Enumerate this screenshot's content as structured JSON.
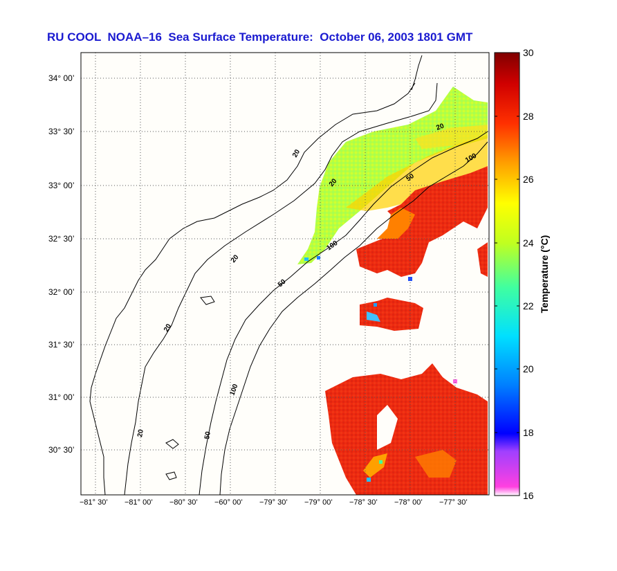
{
  "title": "RU COOL  NOAA–16  Sea Surface Temperature:  October 06, 2003 1801 GMT",
  "lat_labels": [
    "34° 00’",
    "33° 30’",
    "33° 00’",
    "32° 30’",
    "32° 00’",
    "31° 30’",
    "31° 00’",
    "30° 30’"
  ],
  "lon_labels": [
    "−81° 30’",
    "−81° 00’",
    "−80° 30’",
    "−60° 00’",
    "−79° 30’",
    "−79° 00’",
    "−78° 30’",
    "−78° 00’",
    "−77° 30’"
  ],
  "colorbar": {
    "label": "Temperature (°C)",
    "ticks": [
      "30",
      "28",
      "26",
      "24",
      "22",
      "20",
      "18",
      "16"
    ],
    "min": 16,
    "max": 30
  },
  "contours": {
    "labels": [
      "20",
      "20",
      "20",
      "20",
      "20",
      "20",
      "50",
      "50",
      "50",
      "100",
      "100",
      "100"
    ]
  }
}
